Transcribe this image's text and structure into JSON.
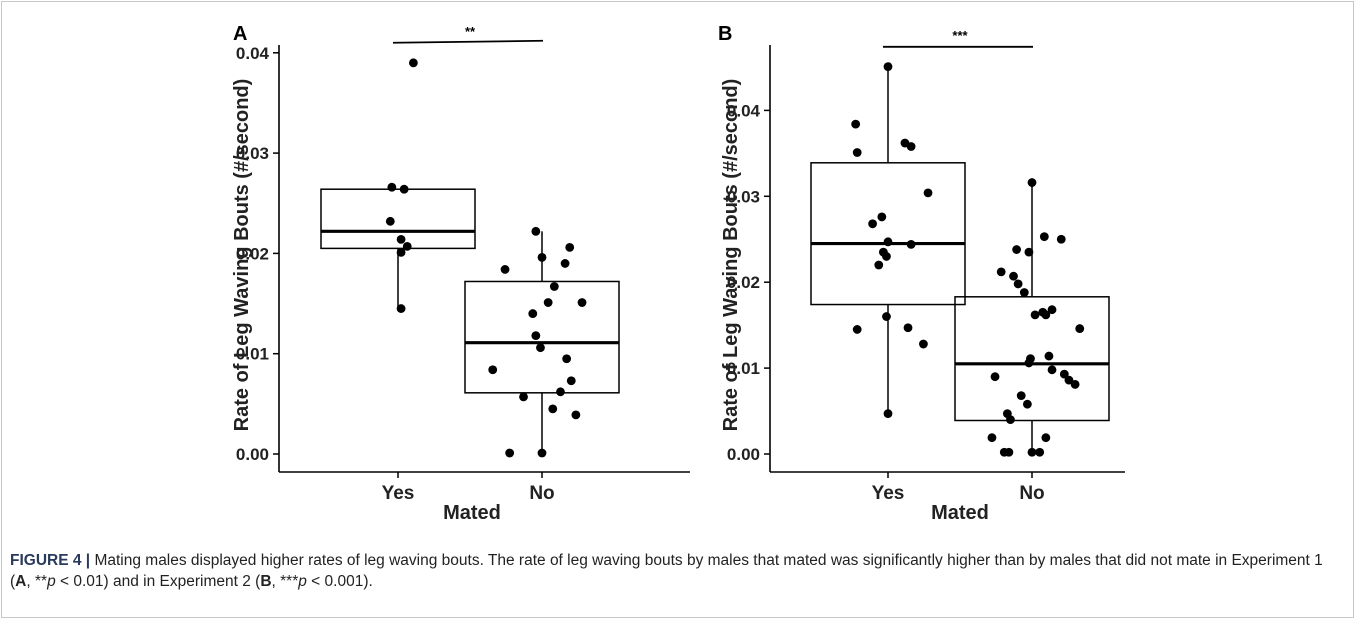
{
  "chart_data": [
    {
      "type": "box",
      "panel_label": "A",
      "xlabel": "Mated",
      "ylabel": "Rate of Leg Waving Bouts (#/second)",
      "categories": [
        "Yes",
        "No"
      ],
      "ylim": [
        0,
        0.041
      ],
      "yticks": [
        "0.00",
        "0.01",
        "0.02",
        "0.03",
        "0.04"
      ],
      "ytick_values": [
        0,
        0.01,
        0.02,
        0.03,
        0.04
      ],
      "significance": {
        "label": "**",
        "y": 0.041
      },
      "boxes": [
        {
          "category": "Yes",
          "whisker_low": 0.0145,
          "q1": 0.0205,
          "median": 0.0222,
          "q3": 0.0264,
          "whisker_high": 0.0264
        },
        {
          "category": "No",
          "whisker_low": 0.0,
          "q1": 0.0061,
          "median": 0.0111,
          "q3": 0.0172,
          "whisker_high": 0.0222
        }
      ],
      "points": [
        {
          "category": "Yes",
          "values": [
            0.039,
            0.0266,
            0.0264,
            0.0232,
            0.0214,
            0.0207,
            0.0201,
            0.0145
          ],
          "jitter": [
            0.1,
            -0.04,
            0.04,
            -0.05,
            0.02,
            0.06,
            0.02,
            0.02
          ]
        },
        {
          "category": "No",
          "values": [
            0.0222,
            0.0206,
            0.0196,
            0.019,
            0.0184,
            0.0167,
            0.0151,
            0.0151,
            0.014,
            0.0118,
            0.0106,
            0.0095,
            0.0084,
            0.0073,
            0.0062,
            0.0057,
            0.0045,
            0.0039,
            0.0001,
            0.0001
          ],
          "jitter": [
            -0.04,
            0.18,
            0.0,
            0.15,
            -0.24,
            0.08,
            0.26,
            0.04,
            -0.06,
            -0.04,
            -0.01,
            0.16,
            -0.32,
            0.19,
            0.12,
            -0.12,
            0.07,
            0.22,
            -0.21,
            0.0
          ]
        }
      ]
    },
    {
      "type": "box",
      "panel_label": "B",
      "xlabel": "Mated",
      "ylabel": "Rate of Leg Waving Bouts (#/second)",
      "categories": [
        "Yes",
        "No"
      ],
      "ylim": [
        0,
        0.047
      ],
      "yticks": [
        "0.00",
        "0.01",
        "0.02",
        "0.03",
        "0.04"
      ],
      "ytick_values": [
        0,
        0.01,
        0.02,
        0.03,
        0.04
      ],
      "significance": {
        "label": "***",
        "y": 0.0474
      },
      "boxes": [
        {
          "category": "Yes",
          "whisker_low": 0.0047,
          "q1": 0.0174,
          "median": 0.0245,
          "q3": 0.0339,
          "whisker_high": 0.0452
        },
        {
          "category": "No",
          "whisker_low": 0.0,
          "q1": 0.0039,
          "median": 0.0105,
          "q3": 0.0183,
          "whisker_high": 0.0315
        }
      ],
      "points": [
        {
          "category": "Yes",
          "values": [
            0.0451,
            0.0384,
            0.0362,
            0.0358,
            0.0351,
            0.0304,
            0.0276,
            0.0268,
            0.0247,
            0.0244,
            0.0235,
            0.023,
            0.022,
            0.016,
            0.0147,
            0.0145,
            0.0128,
            0.0047
          ],
          "jitter": [
            0.0,
            -0.21,
            0.11,
            0.15,
            -0.2,
            0.26,
            -0.04,
            -0.1,
            0.0,
            0.15,
            -0.03,
            -0.01,
            -0.06,
            -0.01,
            0.13,
            -0.2,
            0.23,
            0.0
          ]
        },
        {
          "category": "No",
          "values": [
            0.0316,
            0.0253,
            0.025,
            0.0238,
            0.0235,
            0.0212,
            0.0207,
            0.0198,
            0.0188,
            0.0168,
            0.0165,
            0.0162,
            0.0162,
            0.0146,
            0.0114,
            0.0111,
            0.0106,
            0.0098,
            0.0093,
            0.009,
            0.0086,
            0.0081,
            0.0068,
            0.0058,
            0.0047,
            0.004,
            0.0019,
            0.0019,
            0.0002,
            0.0002,
            0.0002,
            0.0002
          ],
          "jitter": [
            0.0,
            0.08,
            0.19,
            -0.1,
            -0.02,
            -0.2,
            -0.12,
            -0.09,
            -0.05,
            0.13,
            0.07,
            0.02,
            0.09,
            0.31,
            0.11,
            -0.01,
            -0.02,
            0.13,
            0.21,
            -0.24,
            0.24,
            0.28,
            -0.07,
            -0.03,
            -0.16,
            -0.14,
            -0.26,
            0.09,
            -0.18,
            -0.15,
            0.0,
            0.05
          ]
        }
      ]
    }
  ],
  "caption": {
    "label": "FIGURE 4 |",
    "text": " Mating males displayed higher rates of leg waving bouts. The rate of leg waving bouts by males that mated was significantly higher than by males that did not mate in Experiment 1 (",
    "a_label": "A",
    "text2": ", **",
    "p_italic": "p",
    "text3": " < 0.01) and in Experiment 2 (",
    "b_label": "B",
    "text4": ", ***",
    "p_italic2": "p",
    "text5": " < 0.001)."
  },
  "colors": {
    "points": "#000000",
    "axis": "#000000",
    "caption_label": "#2a3a5c"
  }
}
